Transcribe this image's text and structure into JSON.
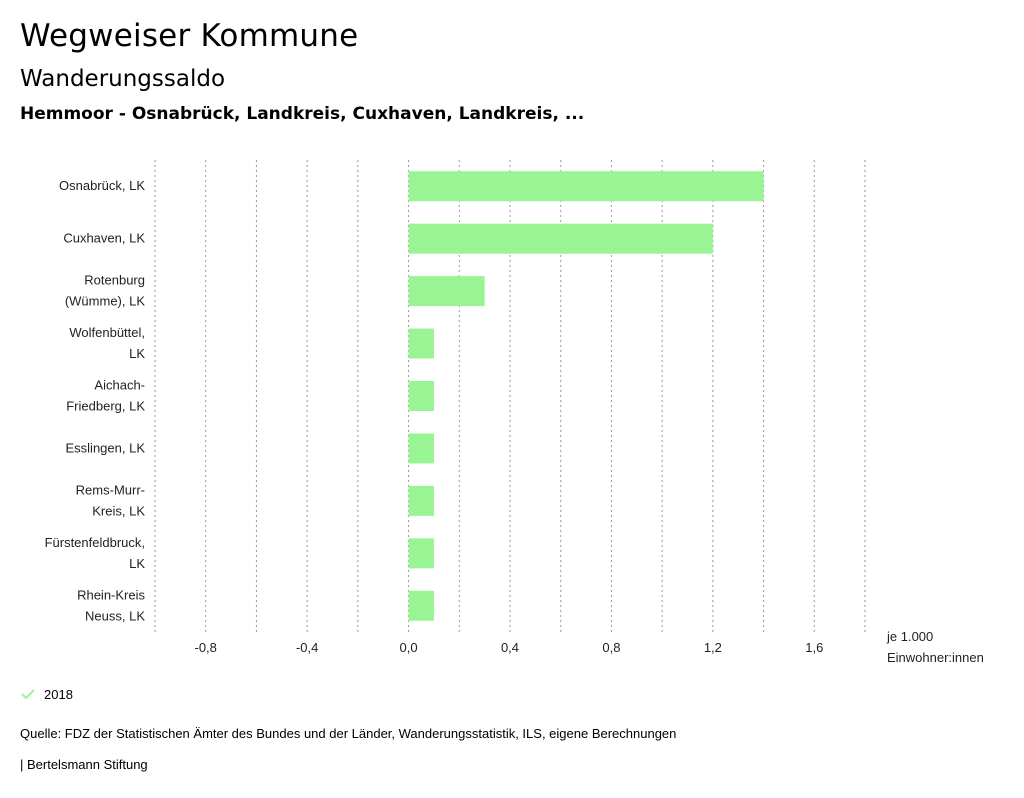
{
  "header": {
    "title": "Wegweiser Kommune",
    "subtitle": "Wanderungssaldo",
    "region": "Hemmoor - Osnabrück, Landkreis, Cuxhaven, Landkreis, ..."
  },
  "chart_data": {
    "type": "bar",
    "orientation": "horizontal",
    "categories": [
      [
        "Osnabrück, LK"
      ],
      [
        "Cuxhaven, LK"
      ],
      [
        "Rotenburg",
        "(Wümme), LK"
      ],
      [
        "Wolfenbüttel,",
        "LK"
      ],
      [
        "Aichach-",
        "Friedberg, LK"
      ],
      [
        "Esslingen, LK"
      ],
      [
        "Rems-Murr-",
        "Kreis, LK"
      ],
      [
        "Fürstenfeldbruck,",
        "LK"
      ],
      [
        "Rhein-Kreis",
        "Neuss, LK"
      ]
    ],
    "series": [
      {
        "name": "2018",
        "color": "#99f593",
        "values": [
          1.4,
          1.2,
          0.3,
          0.1,
          0.1,
          0.1,
          0.1,
          0.1,
          0.1
        ]
      }
    ],
    "xlim": [
      -1.0,
      1.8
    ],
    "xticks": [
      -0.8,
      -0.4,
      0.0,
      0.4,
      0.8,
      1.2,
      1.6
    ],
    "xtick_labels": [
      "-0,8",
      "-0,4",
      "0,0",
      "0,4",
      "0,8",
      "1,2",
      "1,6"
    ],
    "grid_step": 0.2,
    "grid": true,
    "unit_label": [
      "je 1.000",
      "Einwohner:innen"
    ],
    "legend_position": "bottom-left"
  },
  "legend": {
    "label": "2018",
    "color": "#99f593"
  },
  "footer": {
    "source": "Quelle: FDZ der Statistischen Ämter des Bundes und der Länder, Wanderungsstatistik, ILS, eigene Berechnungen",
    "credit": "| Bertelsmann Stiftung"
  }
}
